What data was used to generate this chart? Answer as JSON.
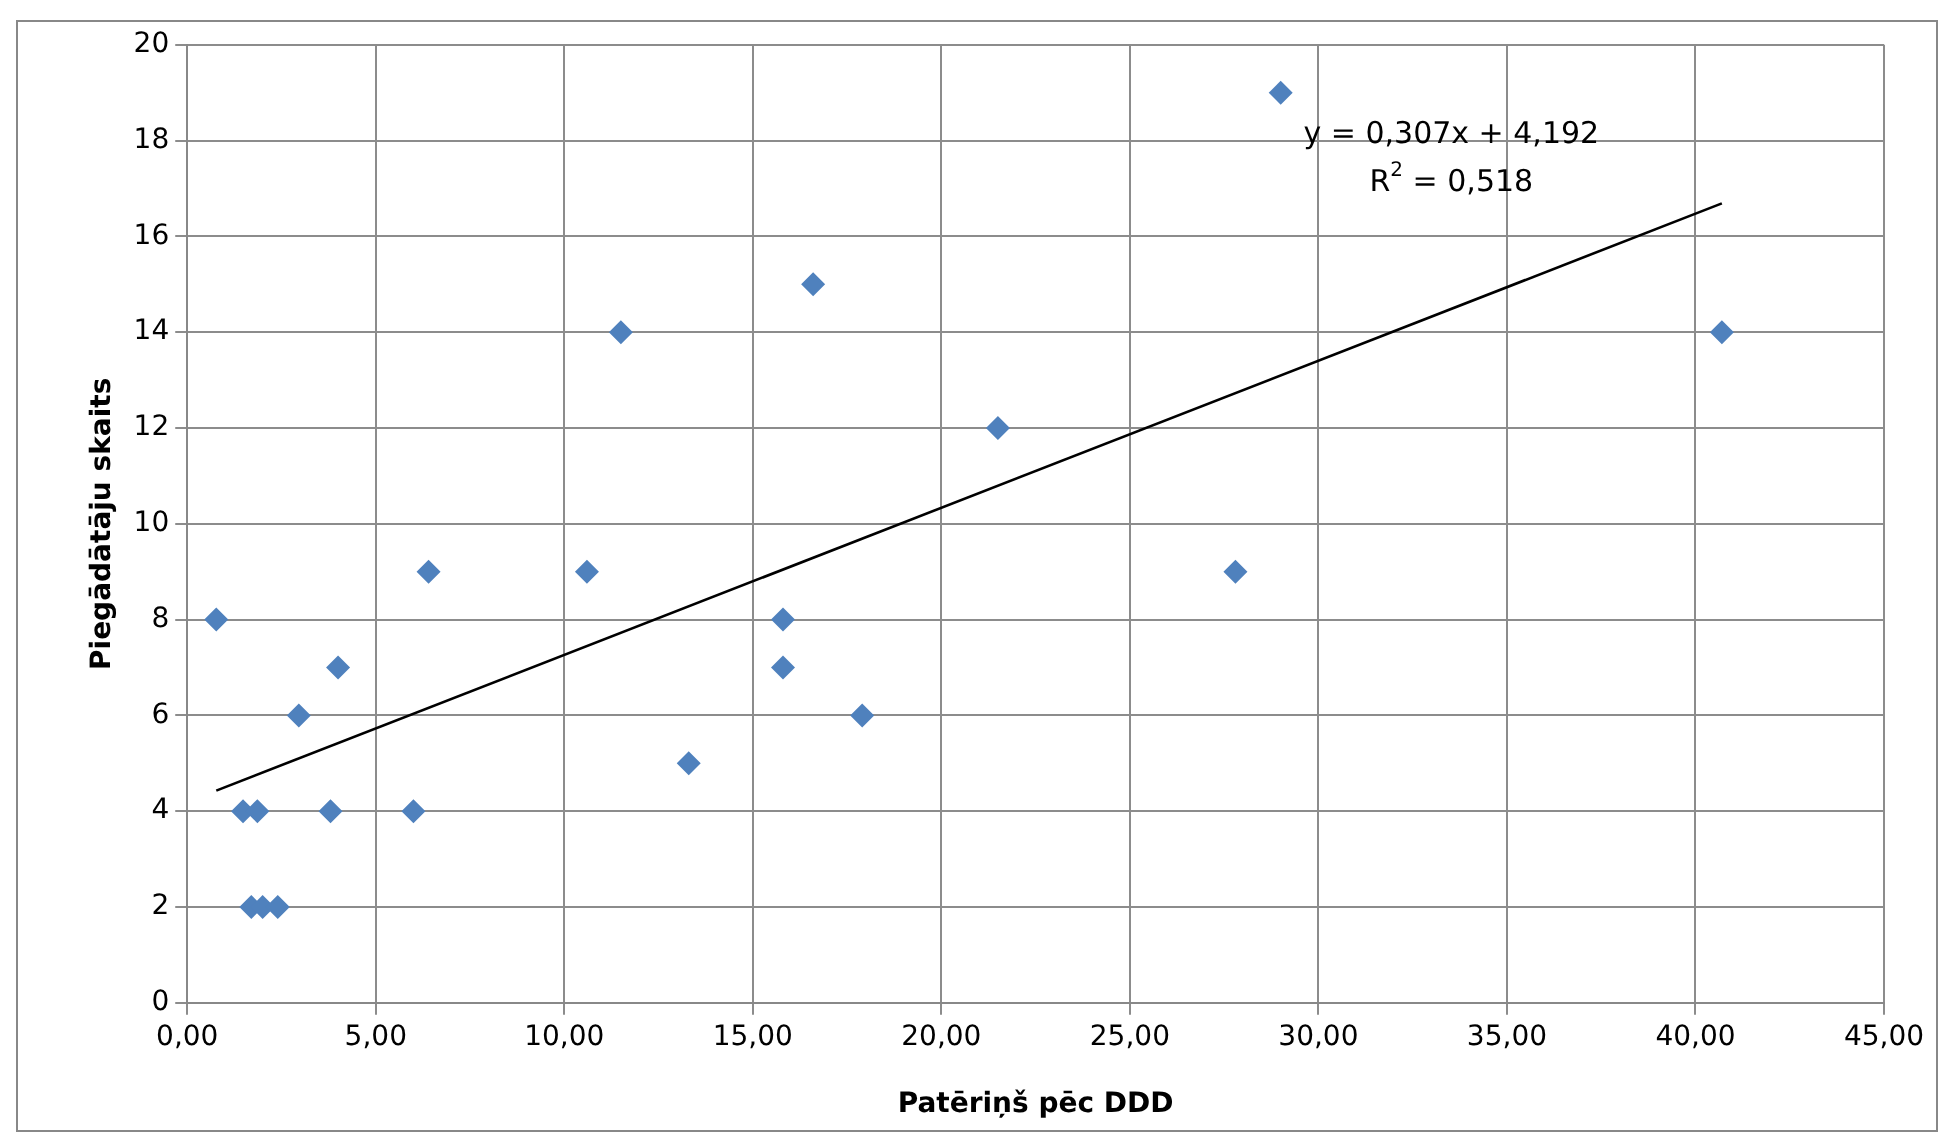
{
  "chart_data": {
    "type": "scatter",
    "xlabel": "Patēriņš pēc DDD",
    "ylabel": "Piegādātāju skaits",
    "x": [
      0.77,
      1.48,
      1.86,
      1.7,
      2.0,
      2.4,
      2.96,
      3.8,
      4.0,
      6.0,
      6.4,
      10.6,
      11.5,
      13.3,
      15.8,
      15.8,
      16.6,
      17.9,
      21.5,
      27.8,
      29.0,
      40.7
    ],
    "series": [
      {
        "color": "#4f81bd",
        "values": [
          8,
          4,
          4,
          2,
          2,
          2,
          6,
          4,
          7,
          4,
          9,
          9,
          14,
          5,
          8,
          7,
          15,
          6,
          12,
          9,
          19,
          14
        ],
        "marker": "diamond"
      },
      {
        "type": "line",
        "color": "#000000",
        "x": [
          0.77,
          40.7
        ],
        "values": [
          4.43,
          16.69
        ],
        "marker": "none"
      }
    ],
    "xlim": [
      0,
      45
    ],
    "xticks": [
      {
        "value": 0,
        "label": "0,00"
      },
      {
        "value": 5,
        "label": "5,00"
      },
      {
        "value": 10,
        "label": "10,00"
      },
      {
        "value": 15,
        "label": "15,00"
      },
      {
        "value": 20,
        "label": "20,00"
      },
      {
        "value": 25,
        "label": "25,00"
      },
      {
        "value": 30,
        "label": "30,00"
      },
      {
        "value": 35,
        "label": "35,00"
      },
      {
        "value": 40,
        "label": "40,00"
      },
      {
        "value": 45,
        "label": "45,00"
      }
    ],
    "ylim": [
      0,
      20
    ],
    "yticks": [
      0,
      2,
      4,
      6,
      8,
      10,
      12,
      14,
      16,
      18,
      20
    ],
    "grid": true,
    "legend": false,
    "annotations": [
      "y = 0,307x + 4,192",
      "R$^{2}$ = 0,518"
    ]
  }
}
